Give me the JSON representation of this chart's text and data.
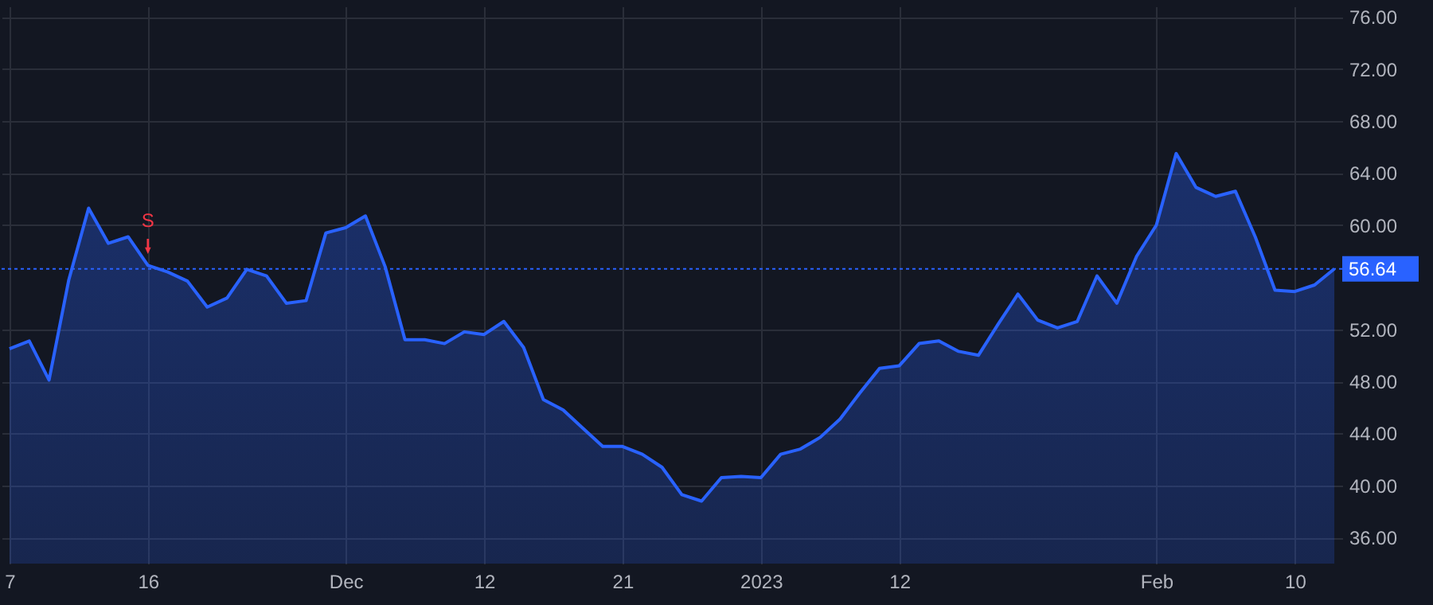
{
  "chart_data": {
    "type": "area",
    "categories": [
      "7",
      null,
      null,
      null,
      null,
      null,
      null,
      "16",
      null,
      null,
      null,
      null,
      null,
      null,
      null,
      null,
      null,
      "Dec",
      null,
      null,
      null,
      null,
      null,
      null,
      "12",
      null,
      null,
      null,
      null,
      null,
      null,
      "21",
      null,
      null,
      null,
      null,
      null,
      null,
      "2023",
      null,
      null,
      null,
      null,
      null,
      null,
      "12",
      null,
      null,
      null,
      null,
      null,
      null,
      null,
      null,
      null,
      null,
      null,
      null,
      "Feb",
      null,
      null,
      null,
      null,
      null,
      null,
      "10",
      null,
      null
    ],
    "series": [
      {
        "color": "#2962ff",
        "values": [
          50.5,
          51.1,
          48.1,
          55.8,
          61.3,
          58.6,
          59.1,
          56.9,
          56.4,
          55.7,
          53.7,
          54.4,
          56.6,
          56.1,
          54.0,
          54.2,
          59.4,
          59.8,
          60.7,
          56.8,
          51.2,
          51.2,
          50.9,
          51.8,
          51.6,
          52.6,
          50.6,
          46.6,
          45.8,
          44.4,
          43.0,
          43.0,
          42.4,
          41.4,
          39.3,
          38.8,
          40.6,
          40.7,
          40.6,
          42.4,
          42.8,
          43.7,
          45.1,
          47.1,
          49.0,
          49.2,
          50.9,
          51.1,
          50.3,
          50.0,
          52.4,
          54.7,
          52.7,
          52.1,
          52.6,
          56.1,
          54.0,
          57.6,
          60.0,
          65.5,
          62.9,
          62.2,
          62.6,
          59.1,
          55.0,
          54.9,
          55.4,
          56.64
        ]
      }
    ],
    "ylim": [
      34,
      76.8
    ],
    "yticks": [
      {
        "value": 36,
        "label": "36.00"
      },
      {
        "value": 40,
        "label": "40.00"
      },
      {
        "value": 44,
        "label": "44.00"
      },
      {
        "value": 48,
        "label": "48.00"
      },
      {
        "value": 52,
        "label": "52.00"
      },
      {
        "value": 60,
        "label": "60.00"
      },
      {
        "value": 64,
        "label": "64.00"
      },
      {
        "value": 68,
        "label": "68.00"
      },
      {
        "value": 72,
        "label": "72.00"
      },
      {
        "value": 76,
        "label": "76.00"
      }
    ],
    "ref_lines": [
      {
        "axis": "y",
        "value": 56.64,
        "label": "56.64",
        "color": "#2962ff",
        "line_style": "dotted"
      }
    ],
    "annotations": [
      {
        "text": "S",
        "x": "16",
        "y": 56.9
      }
    ],
    "grid": true
  }
}
